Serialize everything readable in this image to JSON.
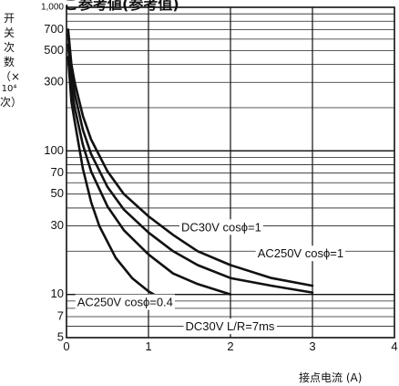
{
  "header": {
    "partial_title": "ご参考値(参考值)"
  },
  "chart_data": {
    "type": "line",
    "title": "",
    "xlabel": "接点电流 (A)",
    "ylabel": [
      "开",
      "关",
      "次",
      "数",
      "（×",
      "10⁴",
      "次）"
    ],
    "x_scale": "linear",
    "y_scale": "log",
    "xlim": [
      0,
      4
    ],
    "ylim": [
      5,
      1000
    ],
    "grid": true,
    "x_ticks": [
      0,
      1,
      2,
      3,
      4
    ],
    "x_tick_labels": [
      "0",
      "1",
      "2",
      "3",
      "4"
    ],
    "y_ticks": [
      5,
      7,
      10,
      30,
      50,
      70,
      100,
      300,
      500,
      700,
      1000
    ],
    "y_tick_labels": [
      "5",
      "7",
      "10",
      "30",
      "50",
      "70",
      "100",
      "300",
      "500",
      "700",
      "1,000"
    ],
    "series": [
      {
        "name": "DC30V cosϕ=1",
        "points": [
          [
            0.02,
            700
          ],
          [
            0.06,
            400
          ],
          [
            0.1,
            300
          ],
          [
            0.2,
            175
          ],
          [
            0.3,
            120
          ],
          [
            0.5,
            72
          ],
          [
            0.7,
            50
          ],
          [
            1.0,
            35
          ],
          [
            1.3,
            26
          ],
          [
            1.6,
            20
          ],
          [
            2.0,
            16
          ],
          [
            2.5,
            13
          ],
          [
            3.0,
            11.5
          ]
        ]
      },
      {
        "name": "AC250V cosϕ=1",
        "points": [
          [
            0.02,
            650
          ],
          [
            0.06,
            350
          ],
          [
            0.1,
            250
          ],
          [
            0.2,
            140
          ],
          [
            0.3,
            95
          ],
          [
            0.5,
            56
          ],
          [
            0.7,
            39
          ],
          [
            1.0,
            27
          ],
          [
            1.3,
            20
          ],
          [
            1.6,
            16
          ],
          [
            2.0,
            13
          ],
          [
            2.5,
            11.5
          ],
          [
            3.0,
            10.3
          ]
        ]
      },
      {
        "name": "DC30V L/R=7ms",
        "points": [
          [
            0.02,
            550
          ],
          [
            0.06,
            280
          ],
          [
            0.1,
            200
          ],
          [
            0.2,
            110
          ],
          [
            0.3,
            72
          ],
          [
            0.5,
            41
          ],
          [
            0.7,
            28
          ],
          [
            1.0,
            19
          ],
          [
            1.3,
            14
          ],
          [
            1.6,
            11.8
          ],
          [
            2.0,
            10
          ]
        ]
      },
      {
        "name": "AC250V cosϕ=0.4",
        "points": [
          [
            0.02,
            450
          ],
          [
            0.06,
            220
          ],
          [
            0.1,
            160
          ],
          [
            0.2,
            75
          ],
          [
            0.3,
            44
          ],
          [
            0.4,
            30
          ],
          [
            0.6,
            18
          ],
          [
            0.8,
            13
          ],
          [
            1.0,
            10.5
          ],
          [
            1.2,
            9
          ]
        ]
      }
    ],
    "annotations": [
      {
        "text": "DC30V  cosϕ=1",
        "series": "DC30V cosϕ=1",
        "x": 1.4,
        "y": 29
      },
      {
        "text": "AC250V  cosϕ=1",
        "series": "AC250V cosϕ=1",
        "x": 2.33,
        "y": 19
      },
      {
        "text": "AC250V  cosϕ=0.4",
        "series": "AC250V cosϕ=0.4",
        "x": 0.13,
        "y": 8.7
      },
      {
        "text": "DC30V L/R=7ms",
        "series": "DC30V L/R=7ms",
        "x": 1.45,
        "y": 5.9
      }
    ]
  }
}
